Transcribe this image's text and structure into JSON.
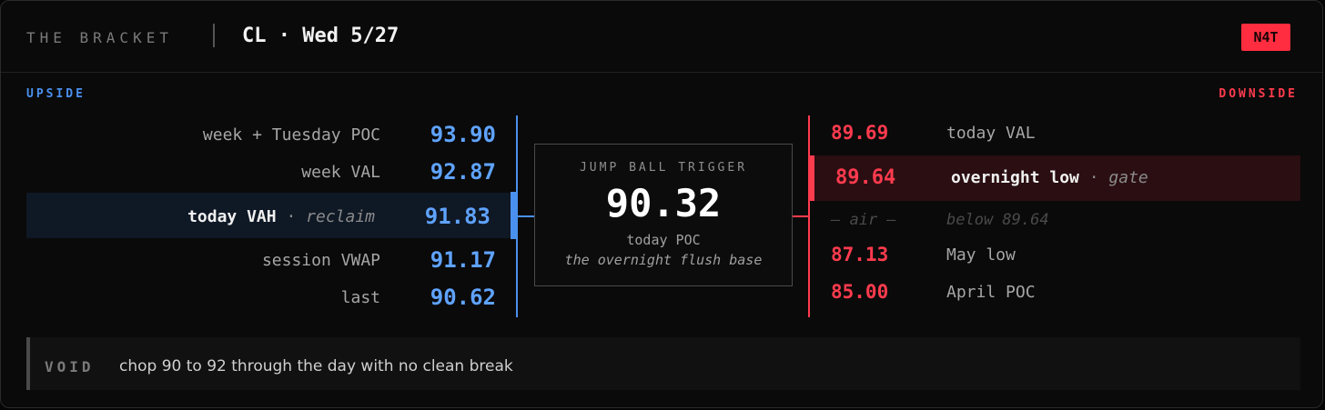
{
  "header": {
    "brand": "THE BRACKET",
    "title": "CL · Wed 5/27",
    "badge": "N4T"
  },
  "upside": {
    "label": "UPSIDE",
    "rows": [
      {
        "label": "week + Tuesday POC",
        "value": "93.90"
      },
      {
        "label": "week VAL",
        "value": "92.87"
      },
      {
        "label": "today VAH",
        "separator": "·",
        "note": "reclaim",
        "value": "91.83"
      },
      {
        "label": "session VWAP",
        "value": "91.17"
      },
      {
        "label": "last",
        "value": "90.62"
      }
    ]
  },
  "center": {
    "title": "JUMP BALL TRIGGER",
    "value": "90.32",
    "subtitle": "today POC",
    "note": "the overnight flush base"
  },
  "downside": {
    "label": "DOWNSIDE",
    "rows": [
      {
        "value": "89.69",
        "label": "today VAL"
      },
      {
        "value": "89.64",
        "label": "overnight low",
        "separator": "·",
        "note": "gate"
      },
      {
        "value": "— air —",
        "label": "below 89.64"
      },
      {
        "value": "87.13",
        "label": "May low"
      },
      {
        "value": "85.00",
        "label": "April POC"
      }
    ]
  },
  "void": {
    "label": "VOID",
    "text": "chop 90 to 92 through the day with no clean break"
  },
  "colors": {
    "upside": "#4a90ee",
    "downside": "#ff3b4e",
    "badge": "#ff2d3f",
    "background": "#0a0a0a"
  }
}
